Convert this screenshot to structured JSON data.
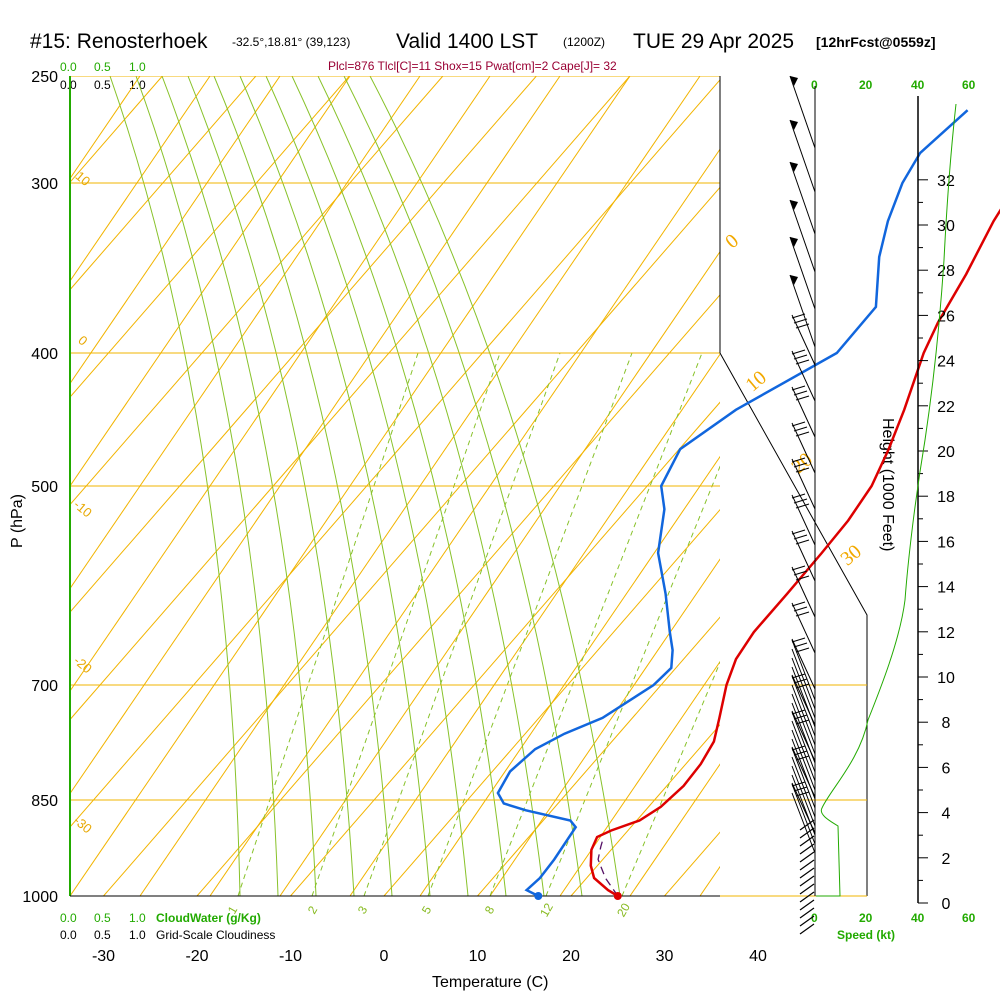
{
  "header": {
    "station": "#15: Renosterhoek",
    "coords": "-32.5°,18.81° (39,123)",
    "valid": "Valid 1400 LST",
    "zulu": "(1200Z)",
    "date": "TUE 29 Apr 2025",
    "forecast": "[12hrFcst@0559z]"
  },
  "params_text": "Plcl=876 Tlcl[C]=11 Shox=15 Pwat[cm]=2 Cape[J]= 32",
  "top_left": {
    "cloudwater_ticks": [
      "0.0",
      "0.5",
      "1.0"
    ],
    "cloudiness_ticks": [
      "0.0",
      "0.5",
      "1.0"
    ]
  },
  "bottom_left": {
    "cloudwater_ticks": [
      "0.0",
      "0.5",
      "1.0"
    ],
    "cloudwater_label": "CloudWater (g/Kg)",
    "cloudiness_ticks": [
      "0.0",
      "0.5",
      "1.0"
    ],
    "cloudiness_label": "Grid-Scale Cloudiness"
  },
  "speed_axis": {
    "top_ticks": [
      "0",
      "20",
      "40",
      "60"
    ],
    "bottom_ticks": [
      "0",
      "20",
      "40",
      "60"
    ],
    "label": "Speed (kt)"
  },
  "colors": {
    "temperature": "#dd0000",
    "dewpoint": "#1166dd",
    "isotherm": "#f2b400",
    "dry_adiabat": "#f2b400",
    "moist_adiabat": "#88c22a",
    "mixing_ratio": "#88c22a",
    "cloud_axis": "#22aa00",
    "parcel": "#551166",
    "params": "#990033"
  },
  "chart_data": {
    "type": "line",
    "title": "#15: Renosterhoek",
    "xlabel": "Temperature (C)",
    "ylabel": "P (hPa)",
    "right_label": "Height (1000 Feet)",
    "pressure_ticks": [
      250,
      300,
      400,
      500,
      700,
      850,
      1000
    ],
    "temperature_ticks": [
      -30,
      -20,
      -10,
      0,
      10,
      20,
      30,
      40
    ],
    "height_ticks": [
      0,
      2,
      4,
      6,
      8,
      10,
      12,
      14,
      16,
      18,
      20,
      22,
      24,
      26,
      28,
      30,
      32
    ],
    "isotherm_labels": [
      "10",
      "0",
      "-10",
      "-20",
      "-30",
      "0",
      "10",
      "20",
      "30"
    ],
    "mixing_ratio_labels": [
      "1",
      "2",
      "3",
      "5",
      "8",
      "12",
      "20"
    ],
    "series": [
      {
        "name": "Temperature",
        "points": [
          {
            "p": 1000,
            "t": 25.0
          },
          {
            "p": 990,
            "t": 23.4
          },
          {
            "p": 970,
            "t": 20.8
          },
          {
            "p": 950,
            "t": 19.3
          },
          {
            "p": 925,
            "t": 17.9
          },
          {
            "p": 905,
            "t": 17.3
          },
          {
            "p": 895,
            "t": 18.2
          },
          {
            "p": 880,
            "t": 20.3
          },
          {
            "p": 860,
            "t": 21.3
          },
          {
            "p": 830,
            "t": 21.8
          },
          {
            "p": 800,
            "t": 21.6
          },
          {
            "p": 770,
            "t": 20.9
          },
          {
            "p": 740,
            "t": 19.3
          },
          {
            "p": 700,
            "t": 17.0
          },
          {
            "p": 670,
            "t": 15.6
          },
          {
            "p": 640,
            "t": 15.0
          },
          {
            "p": 600,
            "t": 15.0
          },
          {
            "p": 560,
            "t": 14.9
          },
          {
            "p": 530,
            "t": 14.7
          },
          {
            "p": 500,
            "t": 14.0
          },
          {
            "p": 470,
            "t": 12.4
          },
          {
            "p": 440,
            "t": 10.4
          },
          {
            "p": 400,
            "t": 7.2
          },
          {
            "p": 380,
            "t": 5.9
          },
          {
            "p": 350,
            "t": 4.4
          },
          {
            "p": 320,
            "t": 2.4
          },
          {
            "p": 300,
            "t": 1.4
          },
          {
            "p": 280,
            "t": 0.7
          },
          {
            "p": 265,
            "t": 0.4
          }
        ]
      },
      {
        "name": "Dewpoint",
        "points": [
          {
            "p": 1000,
            "t": 16.5
          },
          {
            "p": 990,
            "t": 14.7
          },
          {
            "p": 970,
            "t": 15.0
          },
          {
            "p": 940,
            "t": 14.8
          },
          {
            "p": 890,
            "t": 14.1
          },
          {
            "p": 880,
            "t": 12.9
          },
          {
            "p": 865,
            "t": 7.2
          },
          {
            "p": 855,
            "t": 4.2
          },
          {
            "p": 840,
            "t": 2.6
          },
          {
            "p": 810,
            "t": 1.9
          },
          {
            "p": 780,
            "t": 2.5
          },
          {
            "p": 760,
            "t": 4.2
          },
          {
            "p": 740,
            "t": 6.8
          },
          {
            "p": 700,
            "t": 9.2
          },
          {
            "p": 680,
            "t": 9.5
          },
          {
            "p": 660,
            "t": 8.0
          },
          {
            "p": 640,
            "t": 6.0
          },
          {
            "p": 600,
            "t": 2.0
          },
          {
            "p": 560,
            "t": -2.6
          },
          {
            "p": 520,
            "t": -6.0
          },
          {
            "p": 500,
            "t": -8.5
          },
          {
            "p": 470,
            "t": -9.9
          },
          {
            "p": 440,
            "t": -7.6
          },
          {
            "p": 400,
            "t": -2.1
          },
          {
            "p": 370,
            "t": -2.2
          },
          {
            "p": 340,
            "t": -6.5
          },
          {
            "p": 320,
            "t": -8.9
          },
          {
            "p": 300,
            "t": -10.9
          },
          {
            "p": 285,
            "t": -11.8
          },
          {
            "p": 265,
            "t": -10.7
          }
        ]
      },
      {
        "name": "Parcel",
        "points": [
          {
            "p": 1000,
            "t": 25.0
          },
          {
            "p": 970,
            "t": 22.0
          },
          {
            "p": 940,
            "t": 19.5
          },
          {
            "p": 920,
            "t": 18.6
          },
          {
            "p": 905,
            "t": 18.0
          }
        ]
      }
    ]
  }
}
